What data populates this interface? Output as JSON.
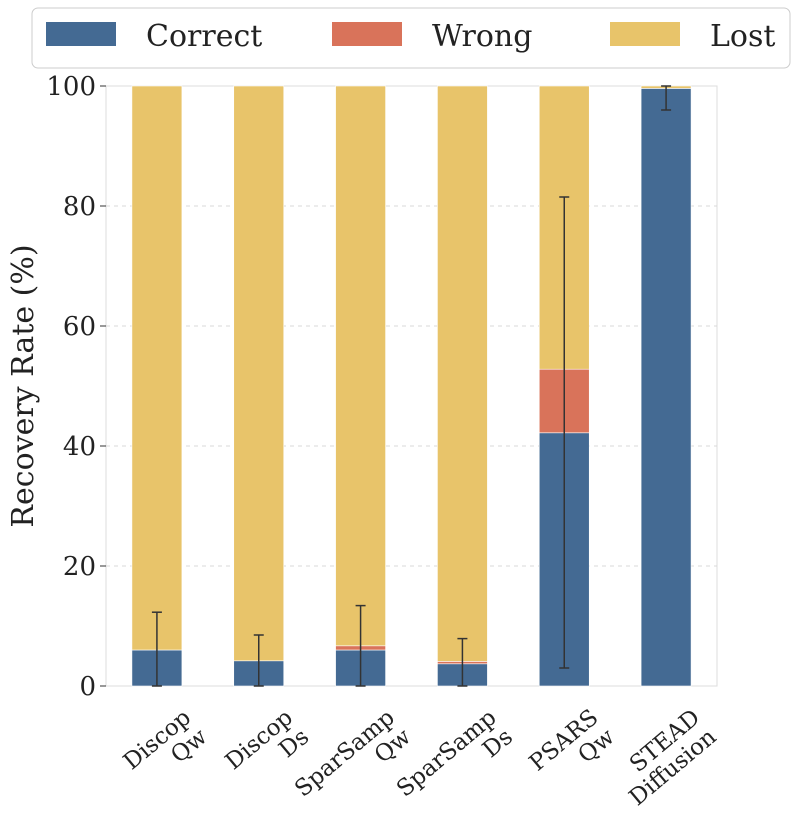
{
  "chart_data": {
    "type": "bar",
    "stacked": true,
    "categories": [
      [
        "Discop",
        "Qw"
      ],
      [
        "Discop",
        "Ds"
      ],
      [
        "SparSamp",
        "Qw"
      ],
      [
        "SparSamp",
        "Ds"
      ],
      [
        "PSARS",
        "Qw"
      ],
      [
        "STEAD",
        "Diffusion"
      ]
    ],
    "series": [
      {
        "name": "Correct",
        "color": "#446a93",
        "values": [
          6.0,
          4.2,
          6.0,
          3.7,
          42.2,
          99.6
        ]
      },
      {
        "name": "Wrong",
        "color": "#d9735a",
        "values": [
          0.0,
          0.0,
          0.7,
          0.4,
          10.6,
          0.0
        ]
      },
      {
        "name": "Lost",
        "color": "#e8c46a",
        "values": [
          94.0,
          95.8,
          93.3,
          95.9,
          47.2,
          0.4
        ]
      }
    ],
    "error_bars": {
      "series": "Correct",
      "low": [
        0.0,
        0.0,
        0.0,
        0.0,
        3.0,
        96.0
      ],
      "high": [
        12.3,
        8.5,
        13.4,
        7.9,
        81.5,
        100.0
      ]
    },
    "ylabel": "Recovery Rate (%)",
    "xlabel": "",
    "ylim": [
      0,
      100
    ],
    "yticks": [
      0,
      20,
      40,
      60,
      80,
      100
    ],
    "grid": true,
    "legend_position": "top"
  }
}
